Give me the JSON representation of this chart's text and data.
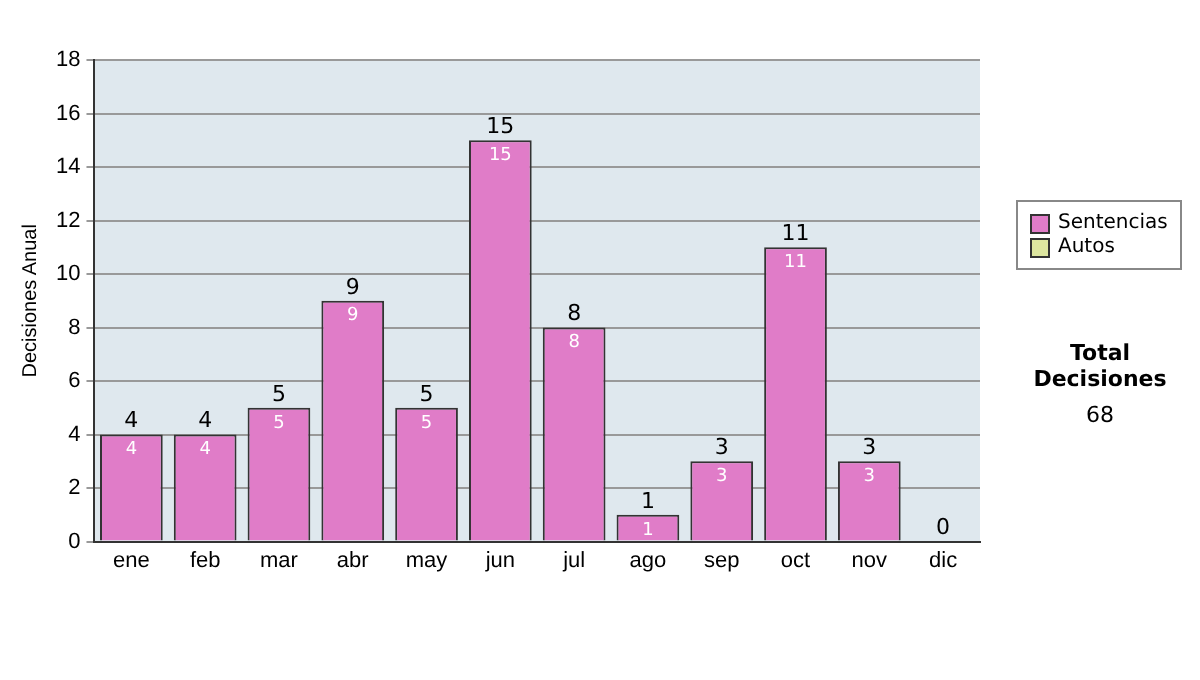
{
  "chart_data": {
    "type": "bar",
    "ylabel": "Decisiones Anual",
    "categories": [
      "ene",
      "feb",
      "mar",
      "abr",
      "may",
      "jun",
      "jul",
      "ago",
      "sep",
      "oct",
      "nov",
      "dic"
    ],
    "series": [
      {
        "name": "Sentencias",
        "color": "#e07cc8",
        "values": [
          4,
          4,
          5,
          9,
          5,
          15,
          8,
          1,
          3,
          11,
          3,
          0
        ],
        "value_labels": [
          "4",
          "4",
          "5",
          "9",
          "5",
          "15",
          "8",
          "1",
          "3",
          "11",
          "3",
          null
        ]
      },
      {
        "name": "Autos",
        "color": "#dde6a0",
        "values": [
          0,
          0,
          0,
          0,
          0,
          0,
          0,
          0,
          0,
          0,
          0,
          0
        ]
      }
    ],
    "stacked": true,
    "totals": [
      "4",
      "4",
      "5",
      "9",
      "5",
      "15",
      "8",
      "1",
      "3",
      "11",
      "3",
      "0"
    ],
    "ylim": [
      0,
      18
    ],
    "yticks": [
      0,
      2,
      4,
      6,
      8,
      10,
      12,
      14,
      16,
      18
    ],
    "grid": "y",
    "legend": "right",
    "annotations": [
      "Total Decisiones",
      "68"
    ]
  }
}
